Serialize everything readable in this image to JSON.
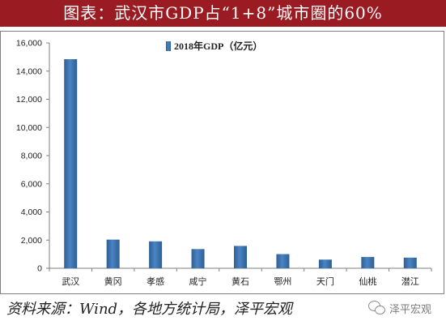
{
  "title": "图表：武汉市GDP占“1+8”城市圈的60%",
  "source": "资料来源：Wind，各地方统计局，泽平宏观",
  "watermark": {
    "text": "泽平宏观",
    "icon": "wechat-icon"
  },
  "colors": {
    "title_band": "#9a1b21",
    "bar": "#4a84c4",
    "bar_dark": "#2e5f93"
  },
  "chart_data": {
    "type": "bar",
    "categories": [
      "武汉",
      "黄冈",
      "孝感",
      "咸宁",
      "黄石",
      "鄂州",
      "天门",
      "仙桃",
      "潜江"
    ],
    "series": [
      {
        "name": "2018年GDP（亿元）",
        "values": [
          14847,
          2035,
          1912,
          1362,
          1587,
          1005,
          616,
          800,
          756
        ]
      }
    ],
    "ylim": [
      0,
      16000
    ],
    "yticks": [
      "0",
      "2,000",
      "4,000",
      "6,000",
      "8,000",
      "10,000",
      "12,000",
      "14,000",
      "16,000"
    ],
    "ytick_values": [
      0,
      2000,
      4000,
      6000,
      8000,
      10000,
      12000,
      14000,
      16000
    ],
    "grid": false,
    "legend_position": "top-center"
  }
}
